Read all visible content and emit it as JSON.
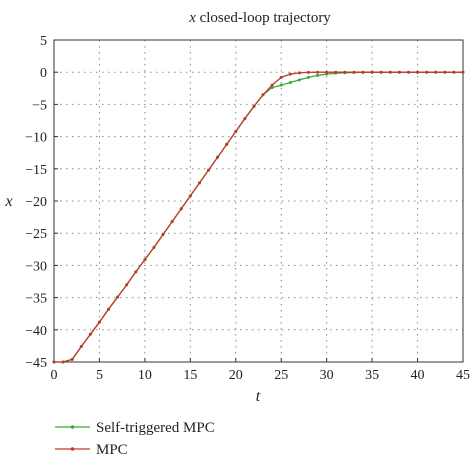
{
  "chart_data": {
    "type": "line",
    "title": "x closed-loop trajectory",
    "title_var": "x",
    "title_rest": " closed-loop trajectory",
    "xlabel": "t",
    "ylabel": "x",
    "xlim": [
      0,
      45
    ],
    "ylim": [
      -45,
      5
    ],
    "xticks": [
      0,
      5,
      10,
      15,
      20,
      25,
      30,
      35,
      40,
      45
    ],
    "yticks": [
      5,
      0,
      -5,
      -10,
      -15,
      -20,
      -25,
      -30,
      -35,
      -40,
      -45
    ],
    "grid": true,
    "legend_position": "bottom-left, below plot",
    "series": [
      {
        "name": "Self-triggered MPC",
        "color": "#3aa83a",
        "marker": "dot",
        "x": [
          0,
          1,
          2,
          3,
          4,
          5,
          6,
          7,
          8,
          9,
          10,
          11,
          12,
          13,
          14,
          15,
          16,
          17,
          18,
          19,
          20,
          21,
          22,
          23,
          24,
          25,
          26,
          27,
          28,
          29,
          30,
          31,
          32,
          33,
          34,
          35,
          36,
          37,
          38,
          39,
          40,
          41,
          42,
          43,
          44,
          45
        ],
        "y": [
          -45,
          -45,
          -44.6,
          -42.6,
          -40.7,
          -38.8,
          -36.8,
          -34.9,
          -33,
          -31,
          -29.1,
          -27.2,
          -25.2,
          -23.2,
          -21.2,
          -19.2,
          -17.2,
          -15.2,
          -13.2,
          -11.2,
          -9.2,
          -7.2,
          -5.3,
          -3.5,
          -2.4,
          -2.0,
          -1.6,
          -1.2,
          -0.8,
          -0.5,
          -0.3,
          -0.15,
          -0.08,
          -0.04,
          -0.02,
          0,
          0,
          0,
          0,
          0,
          0,
          0,
          0,
          0,
          0,
          0
        ]
      },
      {
        "name": "MPC",
        "color": "#c0392b",
        "marker": "dot",
        "x": [
          0,
          1,
          2,
          3,
          4,
          5,
          6,
          7,
          8,
          9,
          10,
          11,
          12,
          13,
          14,
          15,
          16,
          17,
          18,
          19,
          20,
          21,
          22,
          23,
          24,
          25,
          26,
          27,
          28,
          29,
          30,
          31,
          32,
          33,
          34,
          35,
          36,
          37,
          38,
          39,
          40,
          41,
          42,
          43,
          44,
          45
        ],
        "y": [
          -45,
          -45,
          -44.6,
          -42.6,
          -40.7,
          -38.8,
          -36.8,
          -34.9,
          -33,
          -31,
          -29.1,
          -27.2,
          -25.2,
          -23.2,
          -21.2,
          -19.2,
          -17.2,
          -15.2,
          -13.2,
          -11.2,
          -9.2,
          -7.2,
          -5.3,
          -3.5,
          -2.0,
          -0.8,
          -0.3,
          -0.1,
          -0.03,
          0,
          0,
          0,
          0,
          0,
          0,
          0,
          0,
          0,
          0,
          0,
          0,
          0,
          0,
          0,
          0,
          0
        ]
      }
    ]
  }
}
